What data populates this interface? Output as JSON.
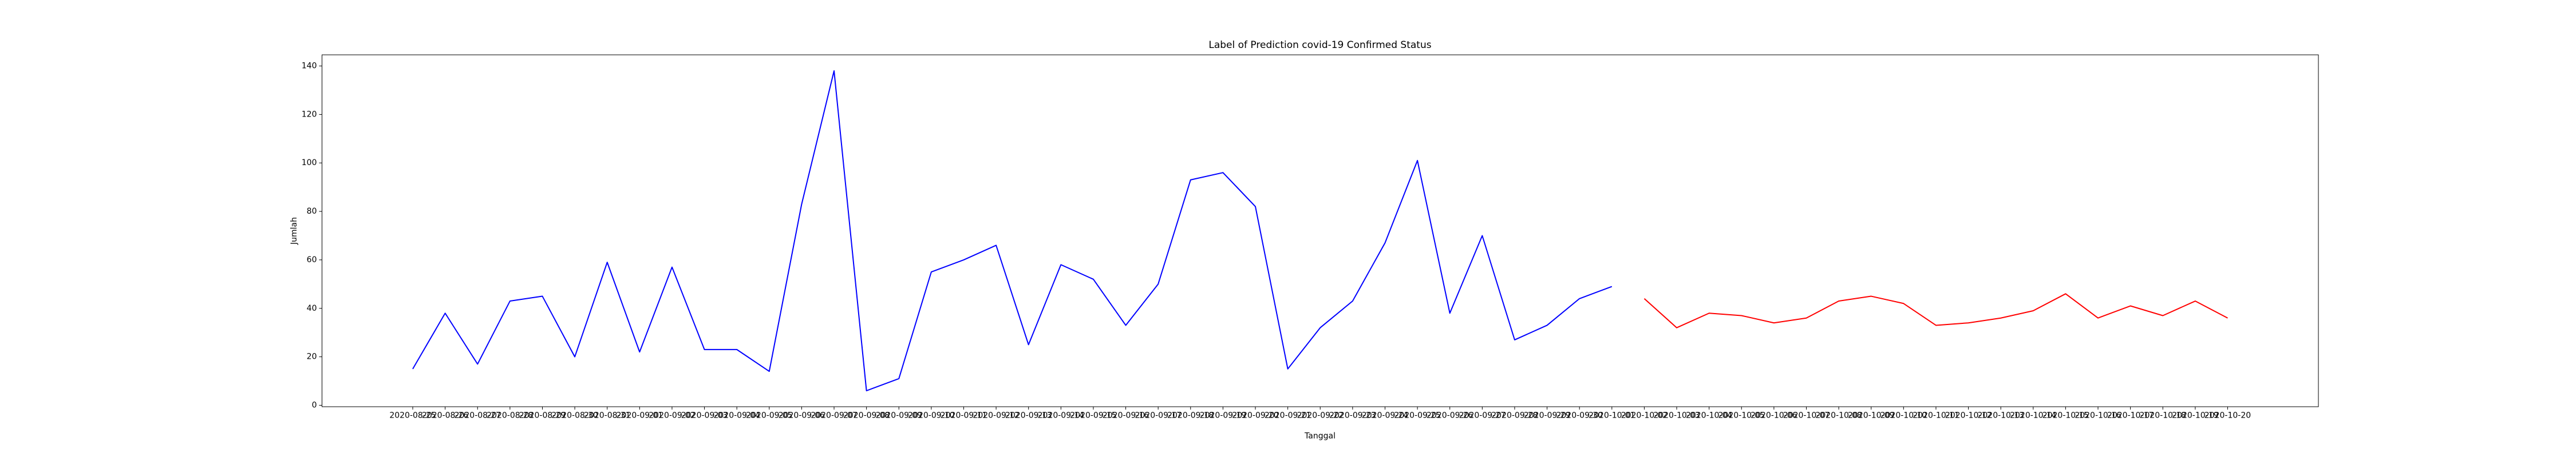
{
  "chart_data": {
    "type": "line",
    "title": "Label of Prediction covid-19 Confirmed Status",
    "xlabel": "Tanggal",
    "ylabel": "Jumlah",
    "categories": [
      "2020-08-25",
      "2020-08-26",
      "2020-08-27",
      "2020-08-28",
      "2020-08-29",
      "2020-08-30",
      "2020-08-31",
      "2020-09-01",
      "2020-09-02",
      "2020-09-03",
      "2020-09-04",
      "2020-09-05",
      "2020-09-06",
      "2020-09-07",
      "2020-09-08",
      "2020-09-09",
      "2020-09-10",
      "2020-09-11",
      "2020-09-12",
      "2020-09-13",
      "2020-09-14",
      "2020-09-15",
      "2020-09-16",
      "2020-09-17",
      "2020-09-18",
      "2020-09-19",
      "2020-09-20",
      "2020-09-21",
      "2020-09-22",
      "2020-09-23",
      "2020-09-24",
      "2020-09-25",
      "2020-09-26",
      "2020-09-27",
      "2020-09-28",
      "2020-09-29",
      "2020-09-30",
      "2020-10-01",
      "2020-10-02",
      "2020-10-03",
      "2020-10-04",
      "2020-10-05",
      "2020-10-06",
      "2020-10-07",
      "2020-10-08",
      "2020-10-09",
      "2020-10-10",
      "2020-10-11",
      "2020-10-12",
      "2020-10-13",
      "2020-10-14",
      "2020-10-15",
      "2020-10-16",
      "2020-10-17",
      "2020-10-18",
      "2020-10-19",
      "2020-10-20"
    ],
    "series": [
      {
        "color": "#0000ff",
        "values": [
          15,
          38,
          17,
          43,
          45,
          20,
          59,
          22,
          57,
          23,
          23,
          14,
          83,
          138,
          6,
          11,
          55,
          60,
          66,
          25,
          58,
          52,
          33,
          50,
          93,
          96,
          82,
          15,
          32,
          43,
          67,
          101,
          38,
          70,
          27,
          33,
          44,
          49,
          null,
          null,
          null,
          null,
          null,
          null,
          null,
          null,
          null,
          null,
          null,
          null,
          null,
          null,
          null,
          null,
          null,
          null,
          null
        ]
      },
      {
        "color": "#ff0000",
        "values": [
          null,
          null,
          null,
          null,
          null,
          null,
          null,
          null,
          null,
          null,
          null,
          null,
          null,
          null,
          null,
          null,
          null,
          null,
          null,
          null,
          null,
          null,
          null,
          null,
          null,
          null,
          null,
          null,
          null,
          null,
          null,
          null,
          null,
          null,
          null,
          null,
          null,
          null,
          44,
          32,
          38,
          37,
          34,
          36,
          43,
          45,
          42,
          33,
          34,
          36,
          39,
          46,
          36,
          41,
          37,
          43,
          36
        ]
      }
    ],
    "ylim": [
      -0.6,
      144.6
    ],
    "yticks": [
      0,
      20,
      40,
      60,
      80,
      100,
      120,
      140
    ]
  }
}
